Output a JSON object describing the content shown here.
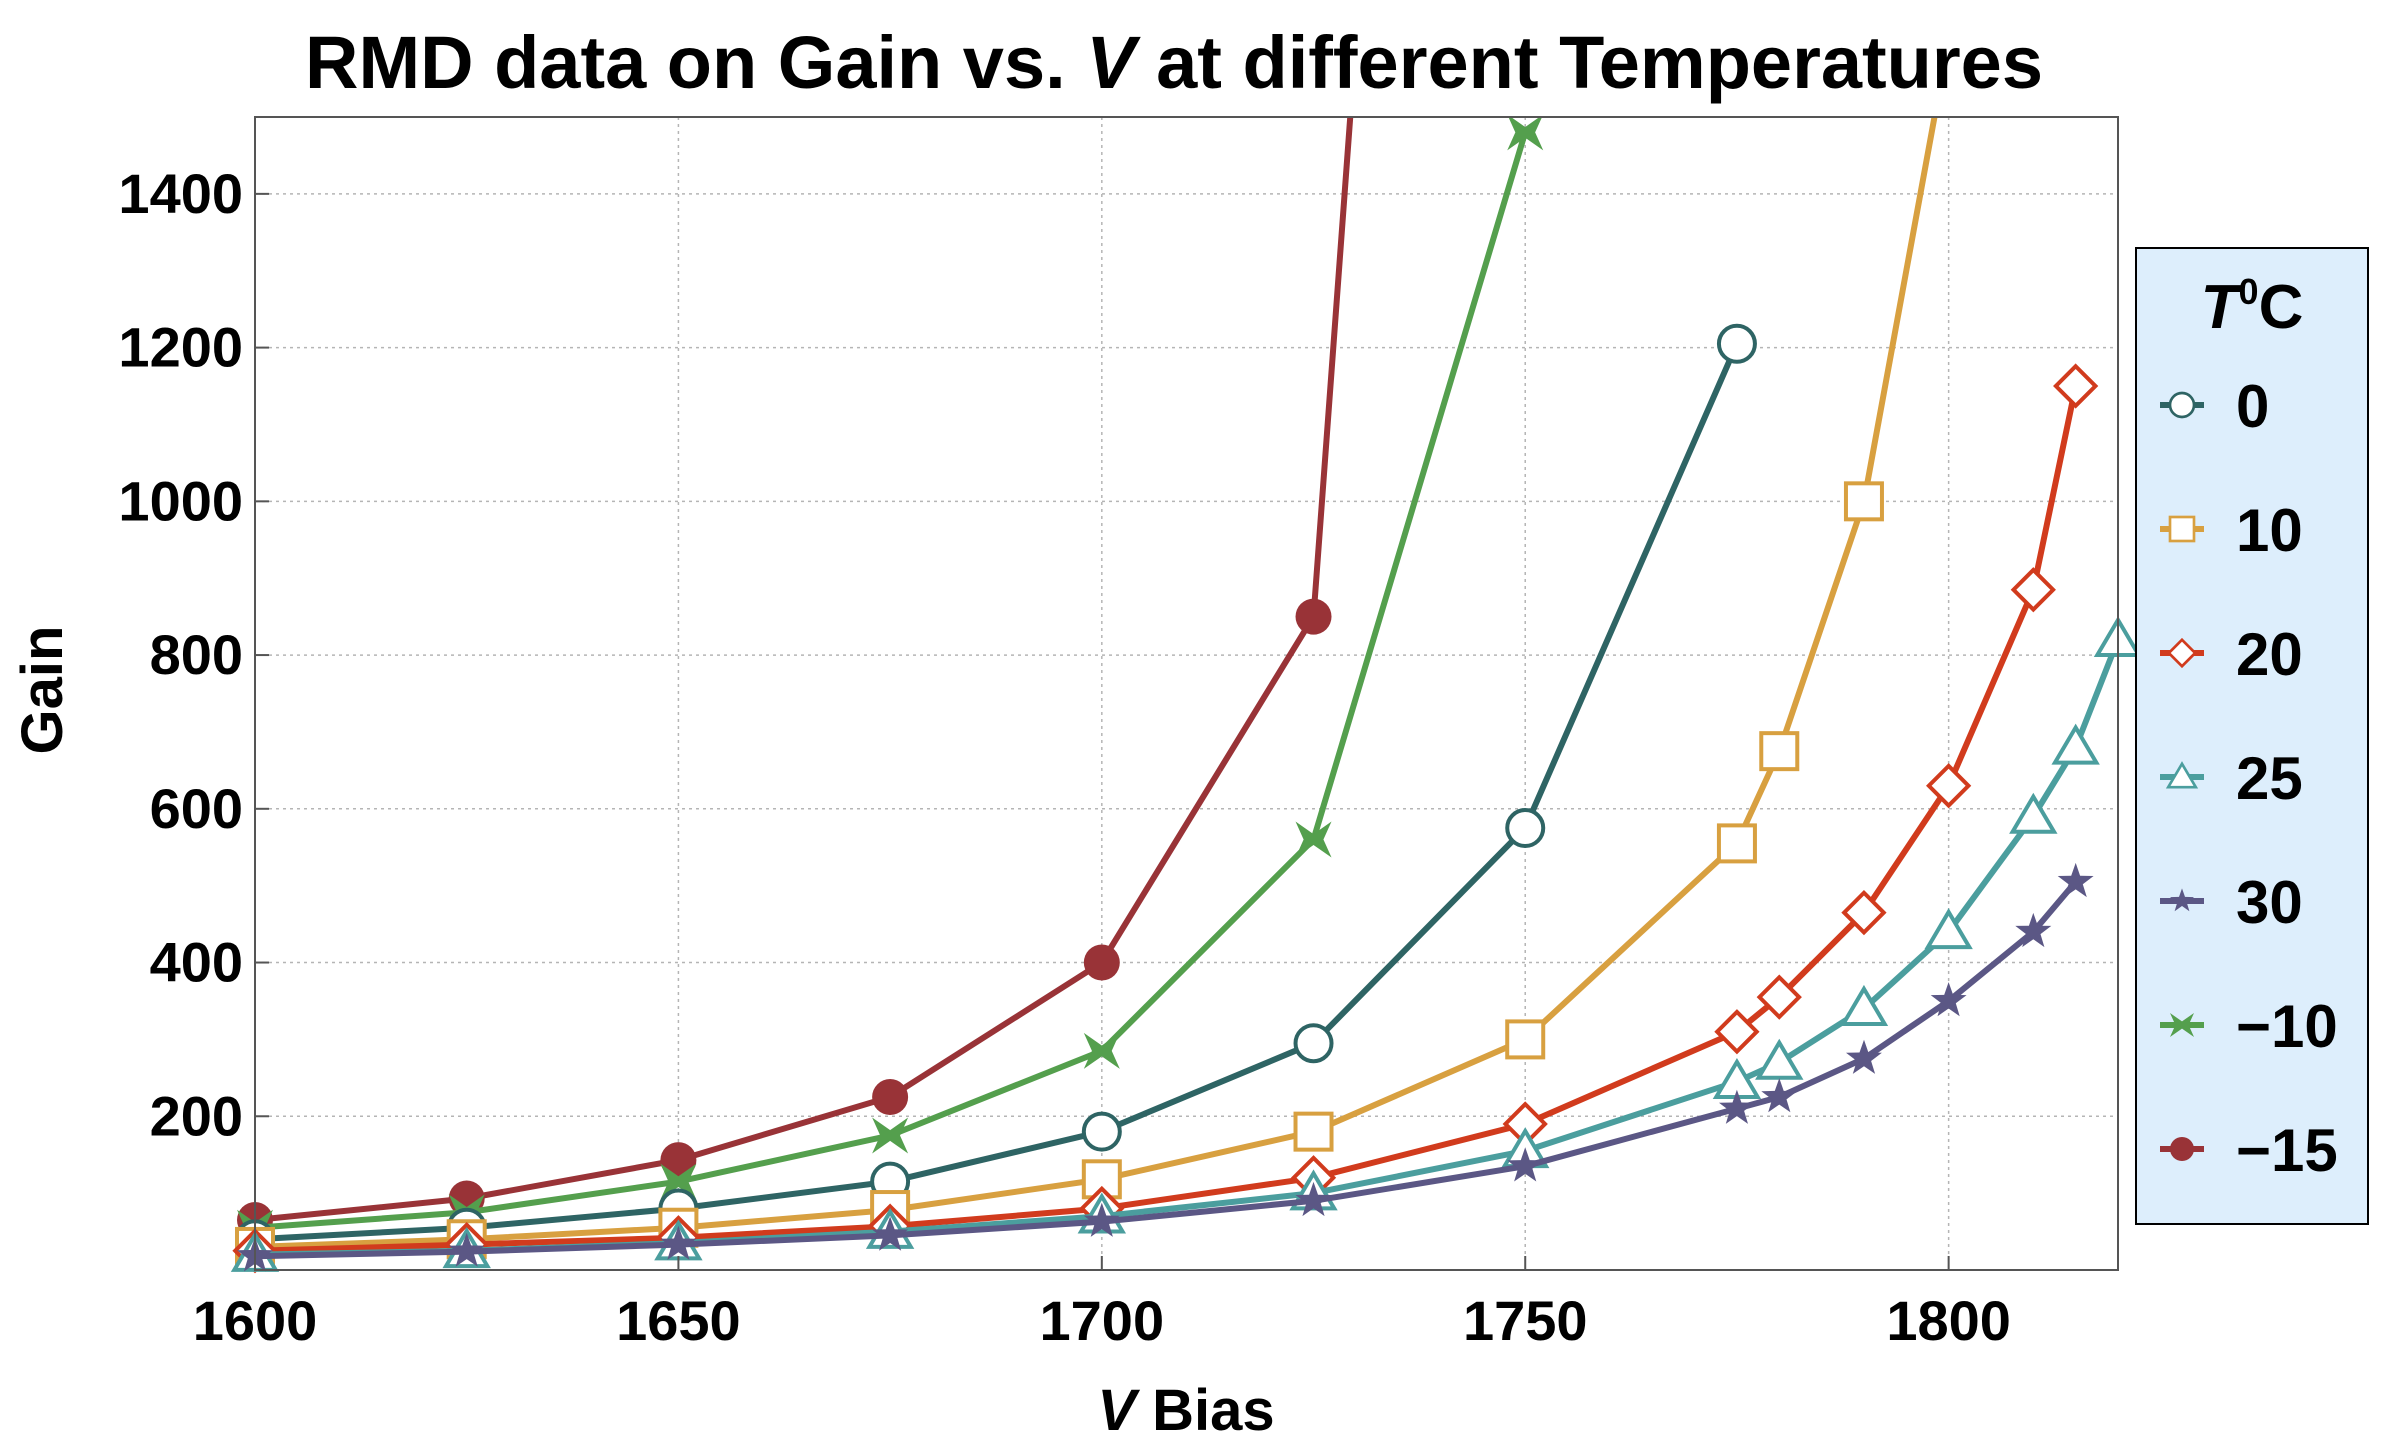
{
  "chart_data": {
    "type": "line",
    "title_parts": [
      "RMD data on Gain vs. ",
      "V",
      " at different Temperatures"
    ],
    "xlabel_parts": [
      "V",
      " Bias"
    ],
    "ylabel": "Gain",
    "xlim": [
      1600,
      1820
    ],
    "ylim": [
      0,
      1500
    ],
    "x_ticks": [
      1600,
      1650,
      1700,
      1750,
      1800
    ],
    "y_ticks": [
      200,
      400,
      600,
      800,
      1000,
      1200,
      1400
    ],
    "grid": true,
    "legend": {
      "title_parts": [
        "T",
        "0",
        "C"
      ],
      "placement": "right",
      "entries": [
        "0",
        "10",
        "20",
        "25",
        "30",
        "−10",
        "−15"
      ]
    },
    "series": [
      {
        "name": "0",
        "color": "#2e6464",
        "marker": "circle-open",
        "x": [
          1600,
          1625,
          1650,
          1675,
          1700,
          1725,
          1750,
          1775
        ],
        "y": [
          40,
          55,
          80,
          115,
          180,
          295,
          575,
          1205
        ]
      },
      {
        "name": "10",
        "color": "#d8a040",
        "marker": "square-open",
        "x": [
          1600,
          1625,
          1650,
          1675,
          1700,
          1725,
          1750,
          1775,
          1780,
          1790,
          1800
        ],
        "y": [
          30,
          40,
          55,
          78,
          118,
          180,
          300,
          555,
          675,
          1000,
          1600
        ]
      },
      {
        "name": "20",
        "color": "#d13b1d",
        "marker": "diamond-open",
        "x": [
          1600,
          1625,
          1650,
          1675,
          1700,
          1725,
          1750,
          1775,
          1780,
          1790,
          1800,
          1810,
          1815
        ],
        "y": [
          25,
          33,
          42,
          57,
          80,
          120,
          190,
          310,
          355,
          465,
          630,
          885,
          1150
        ]
      },
      {
        "name": "25",
        "color": "#4b9e9e",
        "marker": "triangle-open",
        "x": [
          1600,
          1625,
          1650,
          1675,
          1700,
          1725,
          1750,
          1775,
          1780,
          1790,
          1800,
          1810,
          1815,
          1820
        ],
        "y": [
          20,
          25,
          35,
          50,
          70,
          100,
          155,
          245,
          270,
          340,
          440,
          590,
          680,
          820
        ]
      },
      {
        "name": "30",
        "color": "#5b5785",
        "marker": "star",
        "x": [
          1600,
          1625,
          1650,
          1675,
          1700,
          1725,
          1750,
          1775,
          1780,
          1790,
          1800,
          1810,
          1815
        ],
        "y": [
          18,
          24,
          33,
          45,
          63,
          90,
          135,
          210,
          225,
          275,
          350,
          440,
          505
        ]
      },
      {
        "name": "−10",
        "color": "#549f4d",
        "marker": "bowtie",
        "x": [
          1600,
          1625,
          1650,
          1675,
          1700,
          1725,
          1750
        ],
        "y": [
          55,
          75,
          115,
          175,
          285,
          560,
          1480
        ]
      },
      {
        "name": "−15",
        "color": "#993337",
        "marker": "circle-filled",
        "x": [
          1600,
          1625,
          1650,
          1675,
          1700,
          1725,
          1730
        ],
        "y": [
          65,
          93,
          143,
          225,
          400,
          850,
          1600
        ]
      }
    ]
  }
}
